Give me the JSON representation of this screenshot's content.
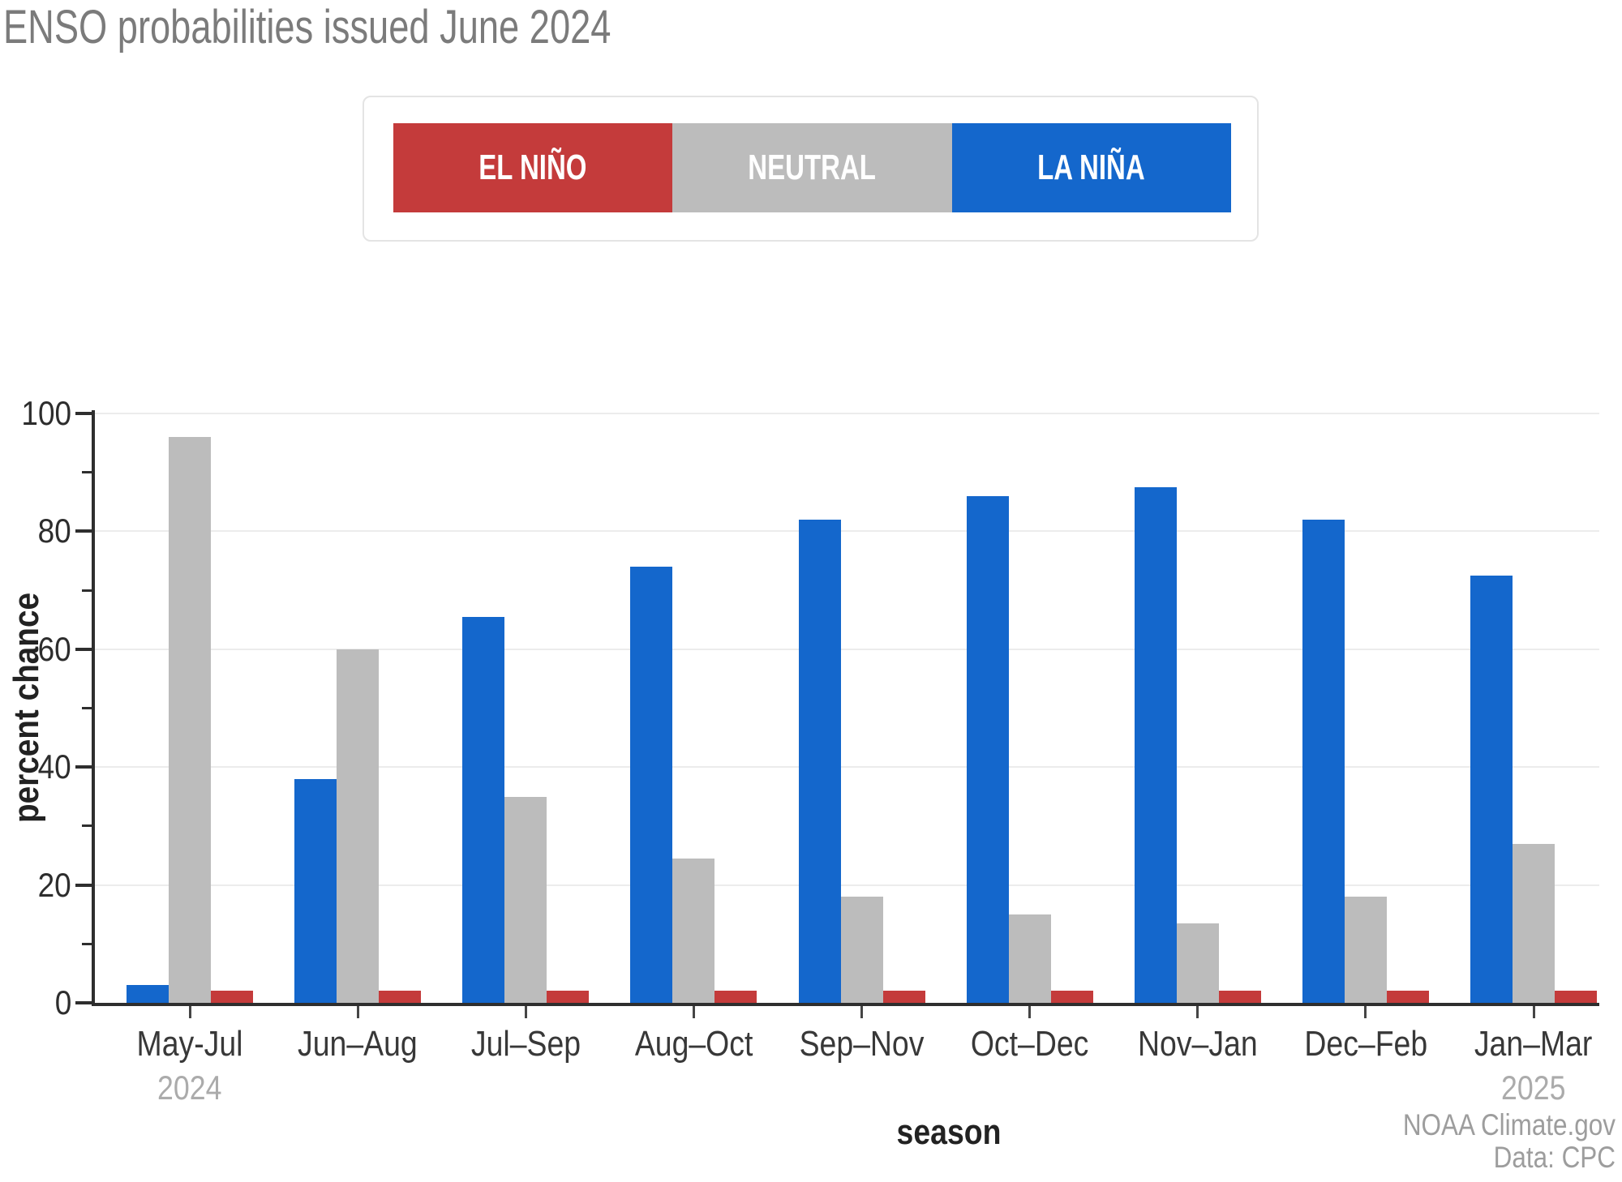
{
  "title": "ENSO probabilities issued June 2024",
  "legend": {
    "items": [
      {
        "label": "EL NIÑO",
        "color": "#c43b3b"
      },
      {
        "label": "NEUTRAL",
        "color": "#bcbcbc"
      },
      {
        "label": "LA NIÑA",
        "color": "#1467cc"
      }
    ]
  },
  "chart_data": {
    "type": "bar",
    "title": "ENSO probabilities issued June 2024",
    "categories": [
      "May-Jul",
      "Jun–Aug",
      "Jul–Sep",
      "Aug–Oct",
      "Sep–Nov",
      "Oct–Dec",
      "Nov–Jan",
      "Dec–Feb",
      "Jan–Mar"
    ],
    "series": [
      {
        "name": "La Niña",
        "color": "#1467cc",
        "values": [
          3,
          38,
          65.5,
          74,
          82,
          86,
          87.5,
          82,
          72.5
        ]
      },
      {
        "name": "Neutral",
        "color": "#bcbcbc",
        "values": [
          96,
          60,
          35,
          24.5,
          18,
          15,
          13.5,
          18,
          27
        ]
      },
      {
        "name": "El Niño",
        "color": "#c43b3b",
        "values": [
          2,
          2,
          2,
          2,
          2,
          2,
          2,
          2,
          2
        ]
      }
    ],
    "xlabel": "season",
    "ylabel": "percent chance",
    "ylim": [
      0,
      100
    ],
    "yticks": [
      0,
      20,
      40,
      60,
      80,
      100
    ],
    "yticks_minor": [
      10,
      30,
      50,
      70,
      90
    ],
    "grid": true,
    "legend_position": "top",
    "x_secondary_labels": {
      "0": "2024",
      "8": "2025"
    }
  },
  "footer": {
    "credit_line1": "NOAA Climate.gov",
    "credit_line2": "Data: CPC"
  }
}
